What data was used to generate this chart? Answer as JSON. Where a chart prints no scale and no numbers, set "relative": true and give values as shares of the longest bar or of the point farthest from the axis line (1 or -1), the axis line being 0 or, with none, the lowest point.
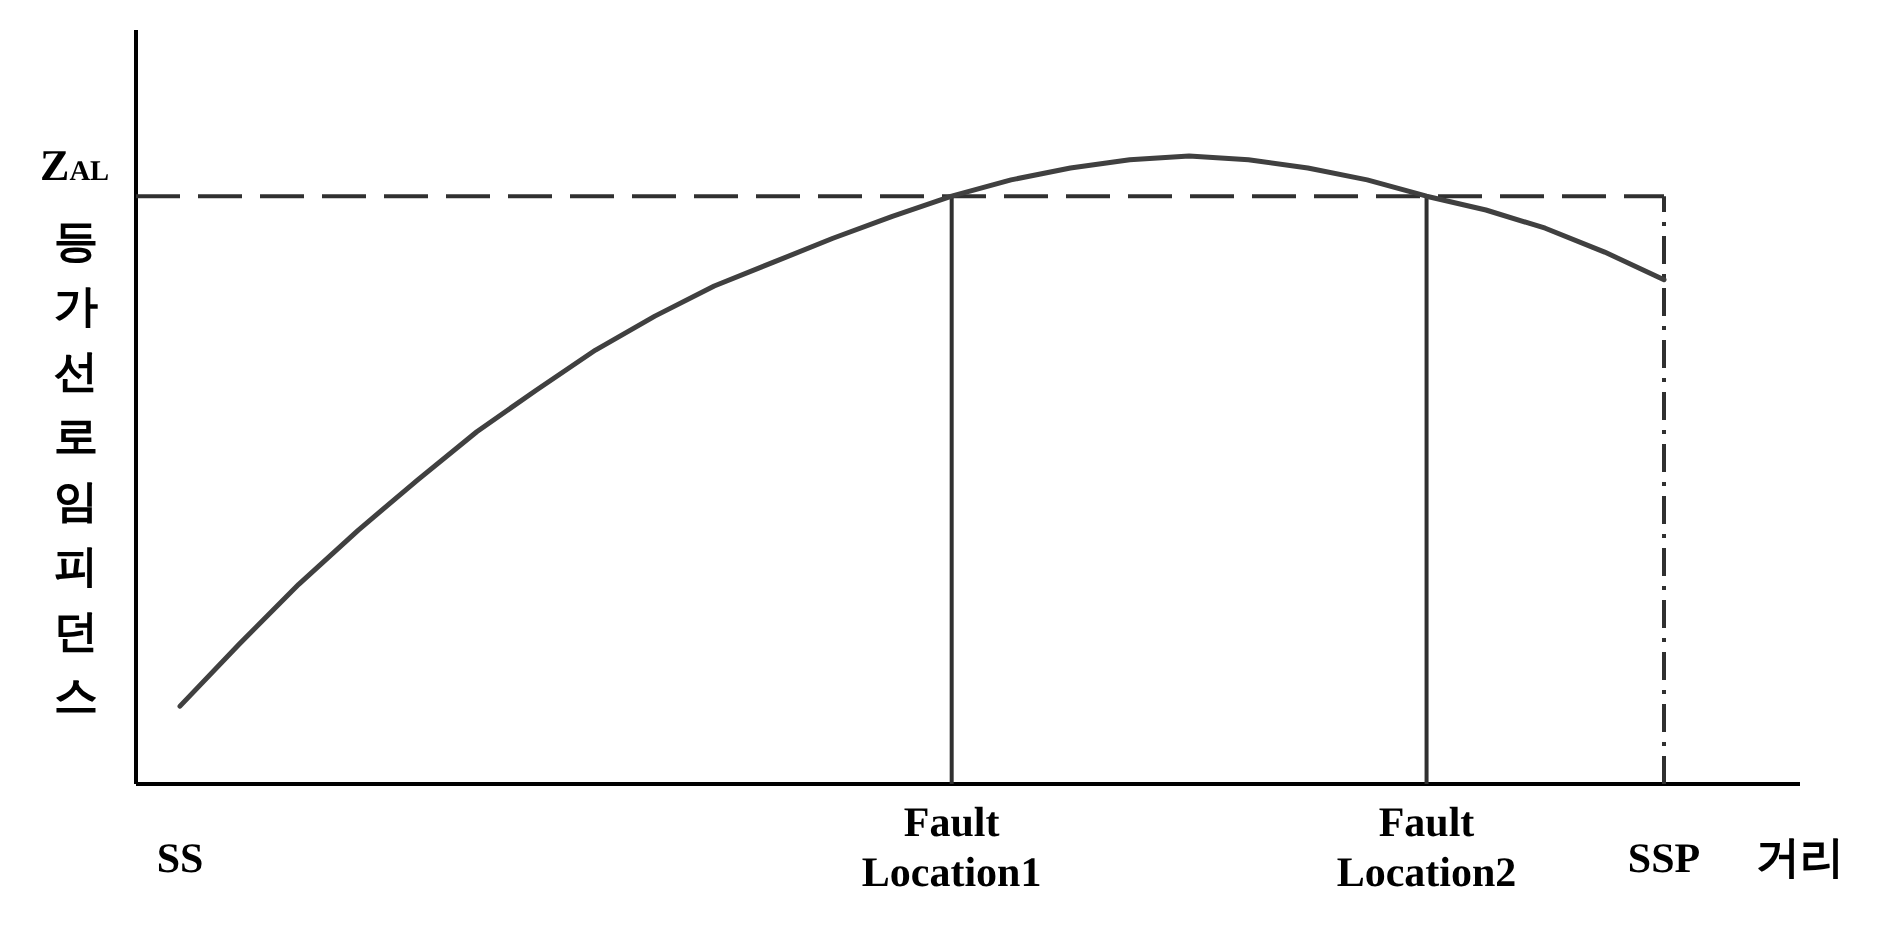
{
  "chart_data": {
    "type": "line",
    "relative": true,
    "categories": [
      "SS",
      null,
      null,
      null,
      null,
      null,
      null,
      null,
      null,
      null,
      null,
      null,
      null,
      "Fault Location1",
      null,
      null,
      null,
      null,
      null,
      null,
      null,
      "Fault Location2",
      null,
      null,
      null,
      "SSP"
    ],
    "series": [
      {
        "color": "#404040",
        "values": [
          0.124,
          0.223,
          0.318,
          0.404,
          0.484,
          0.561,
          0.627,
          0.691,
          0.745,
          0.793,
          0.831,
          0.869,
          0.904,
          0.936,
          0.962,
          0.981,
          0.994,
          1,
          0.994,
          0.981,
          0.962,
          0.936,
          0.914,
          0.885,
          0.847,
          0.803
        ]
      }
    ],
    "xlabel": "거리",
    "ylabel": "등가선로임피던스",
    "ref_lines": [
      {
        "axis": "y",
        "value": 0.936,
        "label": "Z$_{AL}$",
        "line_style": "dashed"
      },
      {
        "axis": "x",
        "value": "Fault Location1",
        "line_style": "solid"
      },
      {
        "axis": "x",
        "value": "Fault Location2",
        "line_style": "solid"
      },
      {
        "axis": "x",
        "value": "SSP",
        "line_style": "dashdot"
      }
    ]
  }
}
